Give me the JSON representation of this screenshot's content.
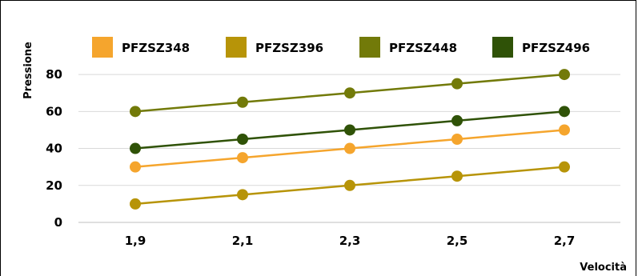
{
  "chart_data": {
    "type": "line",
    "title": "",
    "xlabel": "Velocità",
    "ylabel": "Pressione",
    "categories": [
      "1,9",
      "2,1",
      "2,3",
      "2,5",
      "2,7"
    ],
    "ylim": [
      0,
      90
    ],
    "yticks": [
      "0",
      "20",
      "40",
      "60",
      "80"
    ],
    "grid": true,
    "legend_position": "top",
    "series": [
      {
        "name": "PFZSZ348",
        "color": "#f5a52d",
        "values": [
          30,
          35,
          40,
          45,
          50
        ]
      },
      {
        "name": "PFZSZ396",
        "color": "#b79408",
        "values": [
          10,
          15,
          20,
          25,
          30
        ]
      },
      {
        "name": "PFZSZ448",
        "color": "#727a09",
        "values": [
          60,
          65,
          70,
          75,
          80
        ]
      },
      {
        "name": "PFZSZ496",
        "color": "#2f5207",
        "values": [
          40,
          45,
          50,
          55,
          60
        ]
      }
    ]
  }
}
